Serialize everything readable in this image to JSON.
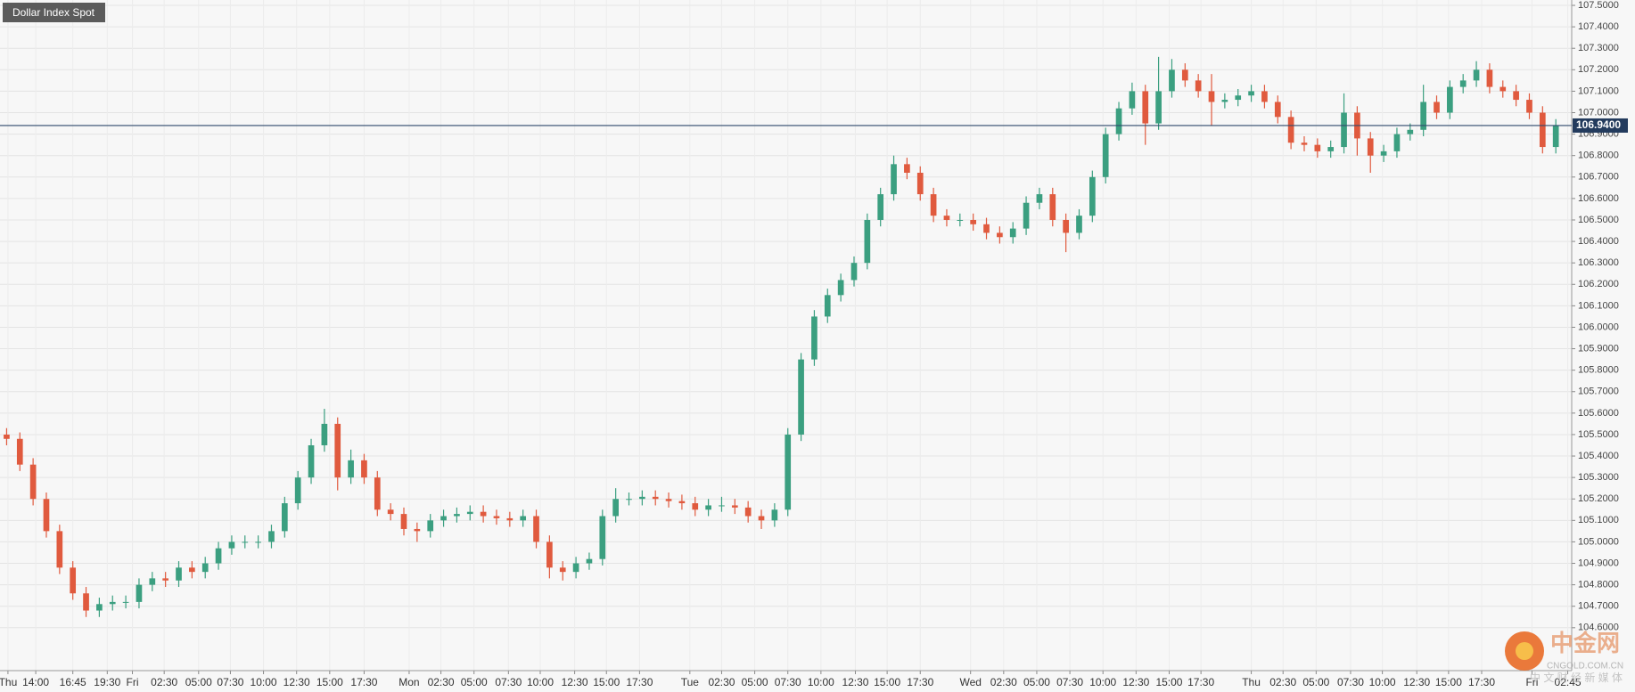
{
  "chart_data": {
    "type": "candlestick",
    "title": "Dollar Index Spot",
    "xlim": [
      0,
      118.7
    ],
    "ylim": [
      104.4,
      107.525
    ],
    "grid": true,
    "up_color": "#3b9f80",
    "down_color": "#e05a3e",
    "last_price": {
      "value": 106.94,
      "label": "106.9400"
    },
    "xticks": [
      {
        "value": 0.6,
        "label": "Thu"
      },
      {
        "value": 2.7,
        "label": "14:00"
      },
      {
        "value": 5.5,
        "label": "16:45"
      },
      {
        "value": 8.1,
        "label": "19:30"
      },
      {
        "value": 10.0,
        "label": "Fri"
      },
      {
        "value": 12.4,
        "label": "02:30"
      },
      {
        "value": 15.0,
        "label": "05:00"
      },
      {
        "value": 17.4,
        "label": "07:30"
      },
      {
        "value": 19.9,
        "label": "10:00"
      },
      {
        "value": 22.4,
        "label": "12:30"
      },
      {
        "value": 24.9,
        "label": "15:00"
      },
      {
        "value": 27.5,
        "label": "17:30"
      },
      {
        "value": 30.9,
        "label": "Mon"
      },
      {
        "value": 33.3,
        "label": "02:30"
      },
      {
        "value": 35.8,
        "label": "05:00"
      },
      {
        "value": 38.4,
        "label": "07:30"
      },
      {
        "value": 40.8,
        "label": "10:00"
      },
      {
        "value": 43.4,
        "label": "12:30"
      },
      {
        "value": 45.8,
        "label": "15:00"
      },
      {
        "value": 48.3,
        "label": "17:30"
      },
      {
        "value": 52.1,
        "label": "Tue"
      },
      {
        "value": 54.5,
        "label": "02:30"
      },
      {
        "value": 57.0,
        "label": "05:00"
      },
      {
        "value": 59.5,
        "label": "07:30"
      },
      {
        "value": 62.0,
        "label": "10:00"
      },
      {
        "value": 64.6,
        "label": "12:30"
      },
      {
        "value": 67.0,
        "label": "15:00"
      },
      {
        "value": 69.5,
        "label": "17:30"
      },
      {
        "value": 73.3,
        "label": "Wed"
      },
      {
        "value": 75.8,
        "label": "02:30"
      },
      {
        "value": 78.3,
        "label": "05:00"
      },
      {
        "value": 80.8,
        "label": "07:30"
      },
      {
        "value": 83.3,
        "label": "10:00"
      },
      {
        "value": 85.8,
        "label": "12:30"
      },
      {
        "value": 88.3,
        "label": "15:00"
      },
      {
        "value": 90.7,
        "label": "17:30"
      },
      {
        "value": 94.5,
        "label": "Thu"
      },
      {
        "value": 96.9,
        "label": "02:30"
      },
      {
        "value": 99.4,
        "label": "05:00"
      },
      {
        "value": 102.0,
        "label": "07:30"
      },
      {
        "value": 104.4,
        "label": "10:00"
      },
      {
        "value": 107.0,
        "label": "12:30"
      },
      {
        "value": 109.4,
        "label": "15:00"
      },
      {
        "value": 111.9,
        "label": "17:30"
      },
      {
        "value": 115.7,
        "label": "Fri"
      },
      {
        "value": 118.4,
        "label": "02:45"
      }
    ],
    "yticks": [
      {
        "value": 104.6,
        "label": "104.6000"
      },
      {
        "value": 104.7,
        "label": "104.7000"
      },
      {
        "value": 104.8,
        "label": "104.8000"
      },
      {
        "value": 104.9,
        "label": "104.9000"
      },
      {
        "value": 105.0,
        "label": "105.0000"
      },
      {
        "value": 105.1,
        "label": "105.1000"
      },
      {
        "value": 105.2,
        "label": "105.2000"
      },
      {
        "value": 105.3,
        "label": "105.3000"
      },
      {
        "value": 105.4,
        "label": "105.4000"
      },
      {
        "value": 105.5,
        "label": "105.5000"
      },
      {
        "value": 105.6,
        "label": "105.6000"
      },
      {
        "value": 105.7,
        "label": "105.7000"
      },
      {
        "value": 105.8,
        "label": "105.8000"
      },
      {
        "value": 105.9,
        "label": "105.9000"
      },
      {
        "value": 106.0,
        "label": "106.0000"
      },
      {
        "value": 106.1,
        "label": "106.1000"
      },
      {
        "value": 106.2,
        "label": "106.2000"
      },
      {
        "value": 106.3,
        "label": "106.3000"
      },
      {
        "value": 106.4,
        "label": "106.4000"
      },
      {
        "value": 106.5,
        "label": "106.5000"
      },
      {
        "value": 106.6,
        "label": "106.6000"
      },
      {
        "value": 106.7,
        "label": "106.7000"
      },
      {
        "value": 106.8,
        "label": "106.8000"
      },
      {
        "value": 106.9,
        "label": "106.9000"
      },
      {
        "value": 107.0,
        "label": "107.0000"
      },
      {
        "value": 107.1,
        "label": "107.1000"
      },
      {
        "value": 107.2,
        "label": "107.2000"
      },
      {
        "value": 107.3,
        "label": "107.3000"
      },
      {
        "value": 107.4,
        "label": "107.4000"
      },
      {
        "value": 107.5,
        "label": "107.5000"
      }
    ],
    "x": [
      0.5,
      1.5,
      2.5,
      3.5,
      4.5,
      5.5,
      6.5,
      7.5,
      8.5,
      9.5,
      10.5,
      11.5,
      12.5,
      13.5,
      14.5,
      15.5,
      16.5,
      17.5,
      18.5,
      19.5,
      20.5,
      21.5,
      22.5,
      23.5,
      24.5,
      25.5,
      26.5,
      27.5,
      28.5,
      29.5,
      30.5,
      31.5,
      32.5,
      33.5,
      34.5,
      35.5,
      36.5,
      37.5,
      38.5,
      39.5,
      40.5,
      41.5,
      42.5,
      43.5,
      44.5,
      45.5,
      46.5,
      47.5,
      48.5,
      49.5,
      50.5,
      51.5,
      52.5,
      53.5,
      54.5,
      55.5,
      56.5,
      57.5,
      58.5,
      59.5,
      60.5,
      61.5,
      62.5,
      63.5,
      64.5,
      65.5,
      66.5,
      67.5,
      68.5,
      69.5,
      70.5,
      71.5,
      72.5,
      73.5,
      74.5,
      75.5,
      76.5,
      77.5,
      78.5,
      79.5,
      80.5,
      81.5,
      82.5,
      83.5,
      84.5,
      85.5,
      86.5,
      87.5,
      88.5,
      89.5,
      90.5,
      91.5,
      92.5,
      93.5,
      94.5,
      95.5,
      96.5,
      97.5,
      98.5,
      99.5,
      100.5,
      101.5,
      102.5,
      103.5,
      104.5,
      105.5,
      106.5,
      107.5,
      108.5,
      109.5,
      110.5,
      111.5,
      112.5,
      113.5,
      114.5,
      115.5,
      116.5,
      117.5
    ],
    "open": [
      105.5,
      105.48,
      105.36,
      105.2,
      105.05,
      104.88,
      104.76,
      104.68,
      104.71,
      104.72,
      104.72,
      104.8,
      104.83,
      104.82,
      104.88,
      104.86,
      104.9,
      104.97,
      105.0,
      105.0,
      105.0,
      105.05,
      105.18,
      105.3,
      105.45,
      105.55,
      105.3,
      105.38,
      105.3,
      105.15,
      105.13,
      105.06,
      105.05,
      105.1,
      105.12,
      105.13,
      105.14,
      105.12,
      105.11,
      105.1,
      105.12,
      105.0,
      104.88,
      104.86,
      104.9,
      104.92,
      105.12,
      105.2,
      105.2,
      105.21,
      105.2,
      105.19,
      105.18,
      105.15,
      105.17,
      105.17,
      105.16,
      105.12,
      105.1,
      105.15,
      105.5,
      105.85,
      106.05,
      106.15,
      106.22,
      106.3,
      106.5,
      106.62,
      106.76,
      106.72,
      106.62,
      106.52,
      106.5,
      106.5,
      106.48,
      106.44,
      106.42,
      106.46,
      106.58,
      106.62,
      106.5,
      106.44,
      106.52,
      106.7,
      106.9,
      107.02,
      107.1,
      106.95,
      107.1,
      107.2,
      107.15,
      107.1,
      107.05,
      107.06,
      107.08,
      107.1,
      107.05,
      106.98,
      106.86,
      106.85,
      106.82,
      106.84,
      107.0,
      106.88,
      106.8,
      106.82,
      106.9,
      106.92,
      107.05,
      107.0,
      107.12,
      107.15,
      107.2,
      107.12,
      107.1,
      107.06,
      107.0,
      106.84
    ],
    "high": [
      105.53,
      105.51,
      105.39,
      105.23,
      105.08,
      104.91,
      104.79,
      104.74,
      104.75,
      104.75,
      104.83,
      104.86,
      104.86,
      104.91,
      104.91,
      104.93,
      105.0,
      105.03,
      105.03,
      105.03,
      105.08,
      105.21,
      105.33,
      105.48,
      105.62,
      105.58,
      105.43,
      105.41,
      105.33,
      105.18,
      105.16,
      105.09,
      105.13,
      105.15,
      105.16,
      105.17,
      105.17,
      105.15,
      105.14,
      105.15,
      105.15,
      105.03,
      104.91,
      104.93,
      104.95,
      105.15,
      105.25,
      105.23,
      105.24,
      105.24,
      105.23,
      105.22,
      105.21,
      105.2,
      105.21,
      105.2,
      105.19,
      105.15,
      105.18,
      105.53,
      105.88,
      106.08,
      106.18,
      106.25,
      106.33,
      106.53,
      106.65,
      106.8,
      106.79,
      106.75,
      106.65,
      106.55,
      106.53,
      106.53,
      106.51,
      106.47,
      106.49,
      106.61,
      106.65,
      106.65,
      106.53,
      106.55,
      106.73,
      106.93,
      107.05,
      107.14,
      107.13,
      107.26,
      107.25,
      107.23,
      107.18,
      107.18,
      107.09,
      107.11,
      107.13,
      107.13,
      107.08,
      107.01,
      106.89,
      106.88,
      106.87,
      107.09,
      107.03,
      106.91,
      106.85,
      106.93,
      106.95,
      107.13,
      107.08,
      107.15,
      107.18,
      107.24,
      107.23,
      107.15,
      107.13,
      107.09,
      107.03,
      106.97
    ],
    "low": [
      105.45,
      105.33,
      105.17,
      105.02,
      104.85,
      104.73,
      104.65,
      104.65,
      104.68,
      104.69,
      104.69,
      104.77,
      104.79,
      104.79,
      104.83,
      104.83,
      104.87,
      104.94,
      104.97,
      104.97,
      104.97,
      105.02,
      105.15,
      105.27,
      105.42,
      105.24,
      105.27,
      105.27,
      105.12,
      105.1,
      105.03,
      105.0,
      105.02,
      105.07,
      105.09,
      105.1,
      105.09,
      105.08,
      105.07,
      105.07,
      104.97,
      104.83,
      104.82,
      104.83,
      104.87,
      104.89,
      105.09,
      105.17,
      105.17,
      105.17,
      105.16,
      105.15,
      105.12,
      105.12,
      105.14,
      105.13,
      105.09,
      105.06,
      105.07,
      105.12,
      105.47,
      105.82,
      106.02,
      106.12,
      106.19,
      106.27,
      106.47,
      106.59,
      106.69,
      106.59,
      106.49,
      106.47,
      106.47,
      106.45,
      106.41,
      106.39,
      106.39,
      106.43,
      106.55,
      106.47,
      106.35,
      106.41,
      106.49,
      106.67,
      106.87,
      106.99,
      106.85,
      106.92,
      107.07,
      107.12,
      107.07,
      106.94,
      107.02,
      107.03,
      107.05,
      107.02,
      106.95,
      106.83,
      106.82,
      106.79,
      106.79,
      106.81,
      106.8,
      106.72,
      106.77,
      106.79,
      106.87,
      106.89,
      106.97,
      106.97,
      107.09,
      107.12,
      107.09,
      107.07,
      107.03,
      106.97,
      106.81,
      106.81
    ],
    "close": [
      105.48,
      105.36,
      105.2,
      105.05,
      104.88,
      104.76,
      104.68,
      104.71,
      104.72,
      104.72,
      104.8,
      104.83,
      104.82,
      104.88,
      104.86,
      104.9,
      104.97,
      105.0,
      105.0,
      105.0,
      105.05,
      105.18,
      105.3,
      105.45,
      105.55,
      105.3,
      105.38,
      105.3,
      105.15,
      105.13,
      105.06,
      105.05,
      105.1,
      105.12,
      105.13,
      105.14,
      105.12,
      105.11,
      105.1,
      105.12,
      105.0,
      104.88,
      104.86,
      104.9,
      104.92,
      105.12,
      105.2,
      105.2,
      105.21,
      105.2,
      105.19,
      105.18,
      105.15,
      105.17,
      105.17,
      105.16,
      105.12,
      105.1,
      105.15,
      105.5,
      105.85,
      106.05,
      106.15,
      106.22,
      106.3,
      106.5,
      106.62,
      106.76,
      106.72,
      106.62,
      106.52,
      106.5,
      106.5,
      106.48,
      106.44,
      106.42,
      106.46,
      106.58,
      106.62,
      106.5,
      106.44,
      106.52,
      106.7,
      106.9,
      107.02,
      107.1,
      106.95,
      107.1,
      107.2,
      107.15,
      107.1,
      107.05,
      107.06,
      107.08,
      107.1,
      107.05,
      106.98,
      106.86,
      106.85,
      106.82,
      106.84,
      107.0,
      106.88,
      106.8,
      106.82,
      106.9,
      106.92,
      107.05,
      107.0,
      107.12,
      107.15,
      107.2,
      107.12,
      107.1,
      107.06,
      107.0,
      106.84,
      106.94
    ]
  },
  "watermark": {
    "brand": "中金网",
    "domain": "CNGOLD.COM.CN",
    "slogan": "中 文 财 经 新 媒 体"
  }
}
